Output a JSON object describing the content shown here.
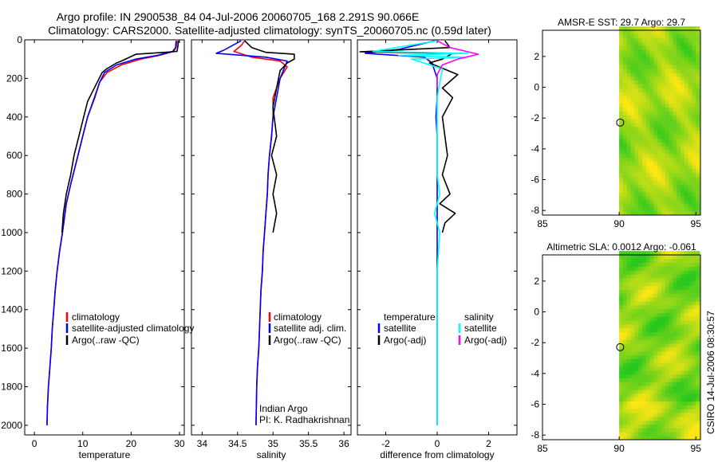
{
  "figure": {
    "title_line1": "Argo profile: IN 2900538_84 04-Jul-2006 20060705_168 2.291S 90.066E",
    "title_line2": "Climatology: CARS2000. Satellite-adjusted climatology: synTS_20060705.nc (0.59d later)",
    "side_label": "CSIRO 14-Jul-2006 08:30:57"
  },
  "colors": {
    "climatology": "#ff0000",
    "satellite": "#0000ff",
    "argo": "#000000",
    "salinity_satellite": "#00ffff",
    "salinity_argo": "#ff00ff"
  },
  "chart_data": [
    {
      "type": "line",
      "name": "temperature-profile",
      "xlabel": "temperature",
      "ylabel": "",
      "xlim": [
        -2,
        31
      ],
      "ylim": [
        2050,
        0
      ],
      "xticks": [
        0,
        10,
        20,
        30
      ],
      "yticks": [
        0,
        200,
        400,
        600,
        800,
        1000,
        1200,
        1400,
        1600,
        1800,
        2000
      ],
      "legend": [
        "climatology",
        "satellite-adjusted climatology",
        "Argo(..raw -QC)"
      ],
      "series": [
        {
          "name": "climatology",
          "color_key": "climatology",
          "x": [
            29.5,
            29.3,
            28.8,
            26,
            22,
            18,
            15,
            13.5,
            12.5,
            11,
            10,
            9,
            7.5,
            6.6,
            5.8,
            5.2,
            4.7,
            4.3,
            4,
            3.7,
            3.5,
            3.2,
            2.9,
            2.7,
            2.6
          ],
          "y": [
            5,
            40,
            60,
            80,
            100,
            130,
            170,
            220,
            300,
            400,
            500,
            600,
            750,
            850,
            1000,
            1100,
            1200,
            1300,
            1400,
            1500,
            1600,
            1700,
            1800,
            1900,
            2000
          ]
        },
        {
          "name": "satellite-adjusted climatology",
          "color_key": "satellite",
          "x": [
            29.3,
            29.2,
            28.6,
            25.5,
            21,
            17,
            14.5,
            13.5,
            12.4,
            11,
            10,
            9,
            7.5,
            6.6,
            5.8,
            5.2,
            4.7,
            4.3,
            4,
            3.7,
            3.5,
            3.2,
            2.9,
            2.7,
            2.6
          ],
          "y": [
            5,
            40,
            60,
            80,
            100,
            130,
            170,
            220,
            300,
            400,
            500,
            600,
            750,
            850,
            1000,
            1100,
            1200,
            1300,
            1400,
            1500,
            1600,
            1700,
            1800,
            1900,
            2000
          ]
        },
        {
          "name": "Argo(..raw -QC)",
          "color_key": "argo",
          "x": [
            29.8,
            29.7,
            29.5,
            27,
            21,
            18,
            17,
            15,
            14,
            13,
            12,
            11,
            10,
            9.2,
            8.2,
            7.5,
            6.6,
            6,
            5.7
          ],
          "y": [
            5,
            30,
            60,
            65,
            75,
            110,
            120,
            150,
            170,
            220,
            270,
            320,
            420,
            500,
            600,
            700,
            800,
            900,
            1000
          ]
        }
      ]
    },
    {
      "type": "line",
      "name": "salinity-profile",
      "xlabel": "salinity",
      "ylabel": "",
      "xlim": [
        33.85,
        36.1
      ],
      "ylim": [
        2050,
        0
      ],
      "xticks": [
        34,
        34.5,
        35,
        35.5,
        36
      ],
      "legend": [
        "climatology",
        "satellite adj. clim.",
        "Argo(..raw -QC)"
      ],
      "annotations": [
        "Indian Argo",
        "PI: K. Radhakrishnan"
      ],
      "series": [
        {
          "name": "climatology",
          "color_key": "climatology",
          "x": [
            34.6,
            34.55,
            34.45,
            34.7,
            35.1,
            35.2,
            35.1,
            35.0,
            35.0,
            34.98,
            34.95,
            34.93,
            34.92,
            34.9,
            34.88,
            34.86,
            34.85,
            34.83,
            34.82,
            34.81,
            34.8,
            34.78,
            34.77,
            34.76
          ],
          "y": [
            5,
            30,
            60,
            90,
            110,
            140,
            200,
            300,
            400,
            500,
            600,
            700,
            800,
            900,
            1000,
            1100,
            1200,
            1300,
            1400,
            1500,
            1600,
            1700,
            1800,
            2000
          ]
        },
        {
          "name": "satellite adj. clim.",
          "color_key": "satellite",
          "x": [
            34.55,
            34.3,
            34.2,
            34.9,
            35.2,
            35.1,
            35.05,
            35.0,
            34.98,
            34.95,
            34.93,
            34.92,
            34.9,
            34.88,
            34.86,
            34.85,
            34.83,
            34.82,
            34.81,
            34.8,
            34.78,
            34.77,
            34.76
          ],
          "y": [
            5,
            55,
            70,
            90,
            110,
            200,
            300,
            400,
            500,
            600,
            700,
            800,
            900,
            1000,
            1100,
            1200,
            1300,
            1400,
            1500,
            1600,
            1700,
            1800,
            2000
          ]
        },
        {
          "name": "Argo(..raw -QC)",
          "color_key": "argo",
          "x": [
            34.6,
            34.7,
            34.9,
            35.3,
            35.3,
            35.2,
            35.1,
            35.05,
            35.0,
            35.05,
            34.98,
            35.05,
            35.0,
            35.05,
            35.0
          ],
          "y": [
            5,
            40,
            65,
            75,
            100,
            120,
            160,
            250,
            350,
            500,
            600,
            700,
            800,
            900,
            1000
          ]
        }
      ]
    },
    {
      "type": "line",
      "name": "difference-profile",
      "xlabel": "difference from climatology",
      "ylabel": "",
      "xlim": [
        -3.1,
        3.1
      ],
      "ylim": [
        2050,
        0
      ],
      "xticks": [
        -2,
        0,
        2
      ],
      "legend_headers": [
        "temperature",
        "salinity"
      ],
      "legend": [
        "satellite",
        "Argo(-adj)",
        "satellite",
        "Argo(-adj)"
      ],
      "series": [
        {
          "name": "temperature satellite",
          "color_key": "satellite",
          "x": [
            -0.1,
            -1.5,
            -2.8,
            -0.5,
            -0.2,
            0,
            0,
            -0.05,
            0,
            0,
            0,
            0,
            0,
            0,
            0,
            0,
            0,
            0
          ],
          "y": [
            5,
            50,
            70,
            90,
            120,
            200,
            300,
            400,
            500,
            600,
            800,
            1000,
            1200,
            1400,
            1600,
            1800,
            1900,
            2000
          ]
        },
        {
          "name": "temperature Argo(-adj)",
          "color_key": "argo",
          "x": [
            0.3,
            0.5,
            -3,
            0.6,
            0.2,
            -0.3,
            0.8,
            0.2,
            0.6,
            0.2,
            0.3,
            0.4,
            0.2,
            0.5,
            0.1,
            0.7,
            0.3,
            0.2
          ],
          "y": [
            5,
            40,
            62,
            70,
            100,
            120,
            180,
            250,
            300,
            400,
            500,
            600,
            700,
            800,
            850,
            900,
            950,
            1000
          ]
        },
        {
          "name": "salinity satellite",
          "color_key": "salinity_satellite",
          "x": [
            0,
            -2.5,
            1.2,
            -1.5,
            1.0,
            -1.0,
            0.2,
            0,
            0,
            0,
            0.1,
            -0.1,
            0.1,
            0,
            0,
            0,
            0,
            0
          ],
          "y": [
            5,
            60,
            70,
            80,
            90,
            100,
            150,
            300,
            500,
            700,
            800,
            900,
            1000,
            1200,
            1400,
            1600,
            1800,
            2000
          ]
        },
        {
          "name": "salinity Argo(-adj)",
          "color_key": "salinity_argo",
          "x": [
            0,
            0.5,
            1.6,
            0.8,
            0.2,
            0,
            0
          ],
          "y": [
            5,
            40,
            75,
            100,
            130,
            180,
            250
          ]
        }
      ]
    },
    {
      "type": "heatmap",
      "name": "sst-map",
      "title": "AMSR-E SST: 29.7 Argo: 29.7",
      "xlim": [
        85,
        95.3
      ],
      "ylim": [
        -8.3,
        3.7
      ],
      "xticks": [
        85,
        90,
        95
      ],
      "yticks": [
        -8,
        -6,
        -4,
        -2,
        0,
        2
      ],
      "data_lon_range": [
        90,
        95
      ],
      "marker": {
        "lon": 90.066,
        "lat": -2.291
      }
    },
    {
      "type": "heatmap",
      "name": "sla-map",
      "title": "Altimetric SLA: 0.0012 Argo: -0.061",
      "xlim": [
        85,
        95.3
      ],
      "ylim": [
        -8.3,
        3.7
      ],
      "xticks": [
        85,
        90,
        95
      ],
      "yticks": [
        -8,
        -6,
        -4,
        -2,
        0,
        2
      ],
      "data_lon_range": [
        90,
        95
      ],
      "marker": {
        "lon": 90.066,
        "lat": -2.291
      }
    }
  ]
}
